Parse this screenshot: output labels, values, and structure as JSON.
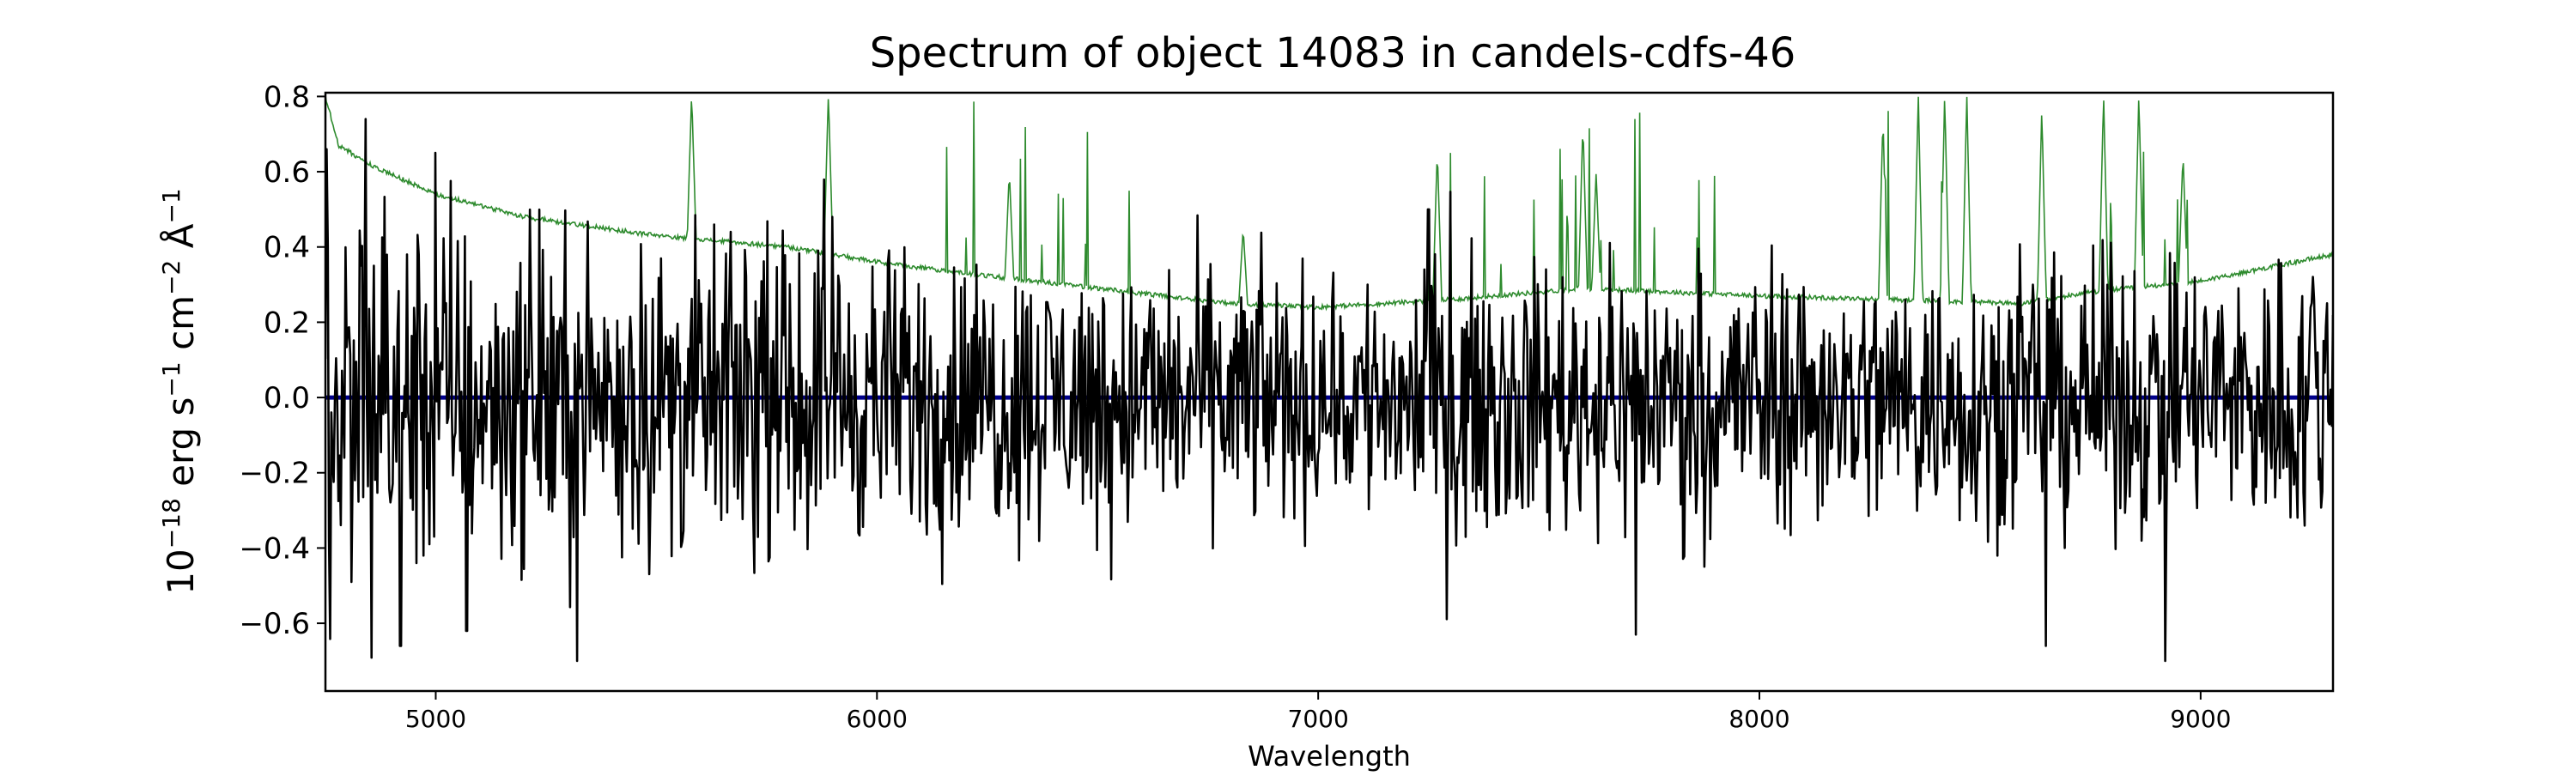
{
  "chart_data": {
    "type": "line",
    "title": "Spectrum of object 14083 in candels-cdfs-46",
    "xlabel": "Wavelength",
    "ylabel": {
      "base": "10",
      "exp": "−18",
      "rest": [
        {
          "t": " erg s",
          "sup": "−1"
        },
        {
          "t": " cm",
          "sup": "−2"
        },
        {
          "t": " Å",
          "sup": "−1"
        }
      ]
    },
    "xlim": [
      4750,
      9300
    ],
    "ylim": [
      -0.78,
      0.81
    ],
    "xticks": [
      5000,
      6000,
      7000,
      8000,
      9000
    ],
    "xtick_labels": [
      "5000",
      "6000",
      "7000",
      "8000",
      "9000"
    ],
    "yticks": [
      -0.6,
      -0.4,
      -0.2,
      0.0,
      0.2,
      0.4,
      0.6,
      0.8
    ],
    "ytick_labels": [
      "−0.6",
      "−0.4",
      "−0.2",
      "0.0",
      "0.2",
      "0.4",
      "0.6",
      "0.8"
    ],
    "grid": false,
    "colors": {
      "flux": "#000000",
      "error": "#2e8b2e",
      "model": "#00008b"
    },
    "series": [
      {
        "key": "flux",
        "description": "noisy object flux, oscillating about zero",
        "x_range": [
          4750,
          9300
        ],
        "noise_amplitude": 0.22,
        "points": 1700,
        "extrema": [
          {
            "x": 4752,
            "y": 0.66
          },
          {
            "x": 4810,
            "y": -0.49
          },
          {
            "x": 4840,
            "y": 0.74
          },
          {
            "x": 4920,
            "y": -0.66
          },
          {
            "x": 5000,
            "y": 0.65
          },
          {
            "x": 5070,
            "y": -0.62
          },
          {
            "x": 5320,
            "y": -0.7
          },
          {
            "x": 5900,
            "y": 0.48
          },
          {
            "x": 7250,
            "y": 0.5
          },
          {
            "x": 7720,
            "y": -0.63
          },
          {
            "x": 8650,
            "y": -0.66
          },
          {
            "x": 8920,
            "y": -0.7
          }
        ]
      },
      {
        "key": "error",
        "description": "flux uncertainty: smooth declining continuum with sky-line spikes",
        "continuum": [
          {
            "x": 4750,
            "y": 0.8
          },
          {
            "x": 4780,
            "y": 0.67
          },
          {
            "x": 4850,
            "y": 0.62
          },
          {
            "x": 5000,
            "y": 0.54
          },
          {
            "x": 5200,
            "y": 0.48
          },
          {
            "x": 5500,
            "y": 0.43
          },
          {
            "x": 5800,
            "y": 0.4
          },
          {
            "x": 6000,
            "y": 0.36
          },
          {
            "x": 6200,
            "y": 0.33
          },
          {
            "x": 6500,
            "y": 0.29
          },
          {
            "x": 6800,
            "y": 0.25
          },
          {
            "x": 7000,
            "y": 0.24
          },
          {
            "x": 7300,
            "y": 0.26
          },
          {
            "x": 7600,
            "y": 0.29
          },
          {
            "x": 8000,
            "y": 0.27
          },
          {
            "x": 8300,
            "y": 0.26
          },
          {
            "x": 8600,
            "y": 0.25
          },
          {
            "x": 8750,
            "y": 0.28
          },
          {
            "x": 9000,
            "y": 0.31
          },
          {
            "x": 9300,
            "y": 0.38
          }
        ],
        "bumps": [
          {
            "x": 5580,
            "y": 0.81
          },
          {
            "x": 5890,
            "y": 0.81
          },
          {
            "x": 6300,
            "y": 0.6
          },
          {
            "x": 6830,
            "y": 0.45
          },
          {
            "x": 7270,
            "y": 0.66
          },
          {
            "x": 7600,
            "y": 0.73
          },
          {
            "x": 7630,
            "y": 0.6
          },
          {
            "x": 8280,
            "y": 0.75
          },
          {
            "x": 8360,
            "y": 0.81
          },
          {
            "x": 8420,
            "y": 0.81
          },
          {
            "x": 8470,
            "y": 0.81
          },
          {
            "x": 8640,
            "y": 0.77
          },
          {
            "x": 8780,
            "y": 0.81
          },
          {
            "x": 8860,
            "y": 0.81
          },
          {
            "x": 8960,
            "y": 0.65
          }
        ],
        "spike_regions": [
          [
            6150,
            6600
          ],
          [
            7250,
            7900
          ],
          [
            8270,
            8520
          ],
          [
            8760,
            9060
          ]
        ]
      },
      {
        "key": "model",
        "description": "model / zero line",
        "x": [
          4750,
          9300
        ],
        "y": [
          0.0,
          0.0
        ]
      }
    ]
  }
}
